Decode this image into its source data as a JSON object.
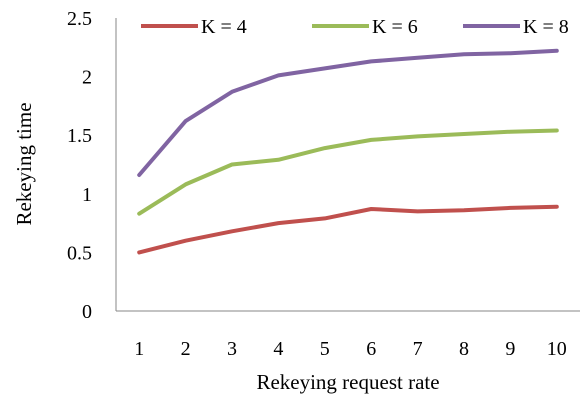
{
  "chart_data": {
    "type": "line",
    "title": "",
    "xlabel": "Rekeying request rate",
    "ylabel": "Rekeying time",
    "x": [
      1,
      2,
      3,
      4,
      5,
      6,
      7,
      8,
      9,
      10
    ],
    "ylim": [
      0,
      2.5
    ],
    "yticks": [
      0,
      0.5,
      1,
      1.5,
      2,
      2.5
    ],
    "yticklabels": [
      "0",
      "0.5",
      "1",
      "1.5",
      "2",
      "2.5"
    ],
    "grid": false,
    "legend_position": "top",
    "series": [
      {
        "name": "K = 4",
        "color": "#c0504d",
        "values": [
          0.5,
          0.6,
          0.68,
          0.75,
          0.79,
          0.87,
          0.85,
          0.86,
          0.88,
          0.89
        ]
      },
      {
        "name": "K = 6",
        "color": "#9bbb59",
        "values": [
          0.83,
          1.08,
          1.25,
          1.29,
          1.39,
          1.46,
          1.49,
          1.51,
          1.53,
          1.54
        ]
      },
      {
        "name": "K = 8",
        "color": "#8064a2",
        "values": [
          1.16,
          1.62,
          1.87,
          2.01,
          2.07,
          2.13,
          2.16,
          2.19,
          2.2,
          2.22
        ]
      }
    ]
  }
}
